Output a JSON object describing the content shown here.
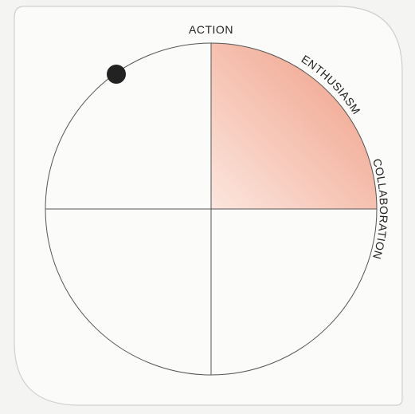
{
  "labels": {
    "top": "ACTION",
    "upper_right": "ENTHUSIASM",
    "right": "COLLABORATION"
  }
}
